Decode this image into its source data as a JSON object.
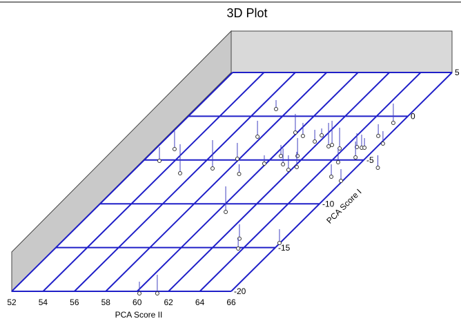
{
  "chart_data": {
    "type": "scatter3d",
    "title": "3D Plot",
    "xlabel": "PCA Score II",
    "ylabel": "PCA Score I",
    "xlim": [
      52,
      66
    ],
    "ylim": [
      -20,
      5
    ],
    "xticks": [
      52,
      54,
      56,
      58,
      60,
      62,
      64,
      66
    ],
    "yticks": [
      -20,
      -15,
      -10,
      -5,
      0,
      5
    ],
    "grid": true,
    "grid_color": "#1f1fc8",
    "color": "#4040c0",
    "x": [
      57.13,
      65.5,
      65.38,
      66.17,
      53.23,
      57.72,
      59.87,
      60.58,
      61.69,
      61.73,
      62.88,
      63.01,
      63.72,
      64.73,
      65.08,
      65.26,
      61.52,
      60.46,
      59.89,
      61.13,
      61.83,
      62.18,
      64.51,
      65.31,
      67.4,
      53.02,
      55.14,
      56.9,
      57.86,
      58.95,
      65.01,
      65.89,
      60.54,
      63.14,
      63.69,
      65.97,
      60.28,
      61.42
    ],
    "values": [
      0.82,
      -0.76,
      -2.25,
      -3.12,
      -3.75,
      -2.33,
      -1.86,
      -2.26,
      -2.89,
      -2.18,
      -3.44,
      -3.28,
      -3.68,
      -3.52,
      -3.6,
      -3.6,
      -4.54,
      -4.54,
      -5.41,
      -5.49,
      -6.12,
      -5.8,
      -5.25,
      -4.7,
      -5.88,
      -5.09,
      -6.51,
      -5.96,
      -4.86,
      -6.59,
      -6.91,
      -7.38,
      -10.93,
      -13.99,
      -15.11,
      -14.48,
      -20.24,
      -20.24
    ],
    "z": [
      13,
      28,
      17,
      18,
      26,
      23,
      27,
      19,
      17,
      10,
      34,
      35,
      30,
      20,
      19,
      14,
      26,
      16,
      12,
      23,
      21,
      22,
      20,
      23,
      18,
      20,
      42,
      41,
      23,
      14,
      18,
      17,
      37,
      21,
      15,
      20,
      17,
      27
    ]
  }
}
